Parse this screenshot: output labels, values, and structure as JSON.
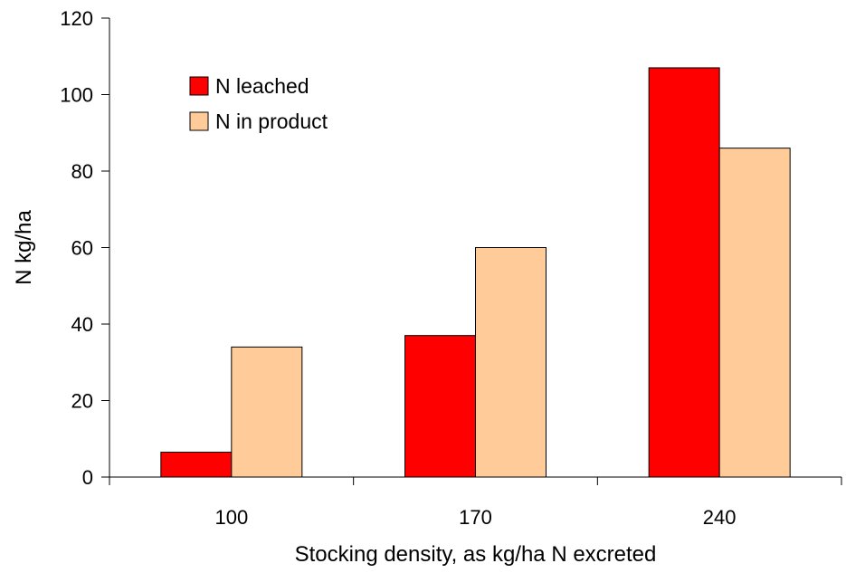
{
  "chart_data": {
    "type": "bar",
    "title": "",
    "xlabel": "Stocking density, as kg/ha N excreted",
    "ylabel": "N kg/ha",
    "categories": [
      "100",
      "170",
      "240"
    ],
    "series": [
      {
        "name": "N leached",
        "color": "#ff0000",
        "values": [
          6.5,
          37,
          107
        ]
      },
      {
        "name": "N in product",
        "color": "#ffcc99",
        "values": [
          34,
          60,
          86
        ]
      }
    ],
    "ylim": [
      0,
      120
    ],
    "yticks": [
      0,
      20,
      40,
      60,
      80,
      100,
      120
    ],
    "grid": false,
    "legend": "top-left"
  }
}
